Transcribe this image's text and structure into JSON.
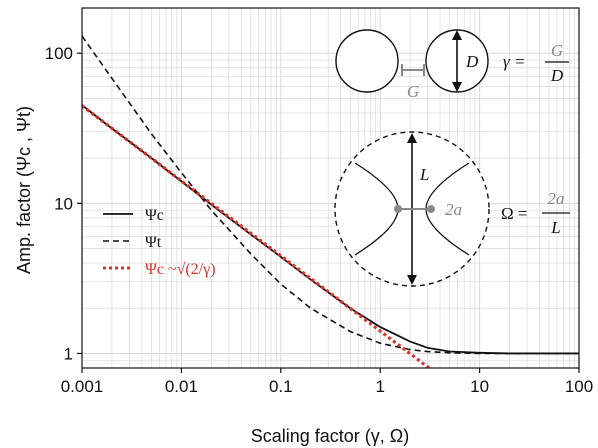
{
  "chart_data": {
    "type": "line",
    "x_scale": "log",
    "y_scale": "log",
    "xlim": [
      0.001,
      100
    ],
    "ylim": [
      0.8,
      200
    ],
    "grid": true,
    "xlabel": "Scaling factor (γ, Ω)",
    "ylabel": "Amp. factor (Ψc , Ψt)",
    "x_ticks": [
      "0.001",
      "0.01",
      "0.1",
      "1",
      "10",
      "100"
    ],
    "y_ticks": [
      "1",
      "10",
      "100"
    ],
    "legend_position": "middle-left",
    "series": [
      {
        "name": "Ψc",
        "style": "solid",
        "color": "#111111",
        "x": [
          0.001,
          0.002,
          0.005,
          0.01,
          0.02,
          0.05,
          0.1,
          0.2,
          0.5,
          1,
          2,
          3,
          5,
          10,
          20,
          50,
          100
        ],
        "y": [
          45,
          31.5,
          20,
          14,
          9.8,
          6.2,
          4.4,
          3.1,
          2.0,
          1.5,
          1.2,
          1.09,
          1.03,
          1.01,
          1.0,
          1.0,
          1.0
        ]
      },
      {
        "name": "Ψt",
        "style": "dashed",
        "color": "#111111",
        "x": [
          0.001,
          0.002,
          0.005,
          0.01,
          0.02,
          0.05,
          0.1,
          0.2,
          0.5,
          1,
          2,
          3,
          5,
          10,
          20,
          50,
          100
        ],
        "y": [
          130,
          68,
          29,
          16,
          9.0,
          4.6,
          2.9,
          2.0,
          1.4,
          1.17,
          1.06,
          1.03,
          1.01,
          1.0,
          1.0,
          1.0,
          1.0
        ]
      },
      {
        "name": "Ψc ~√(2/γ)",
        "style": "dotted",
        "color": "#e0302a",
        "x": [
          0.001,
          0.01,
          0.1,
          1,
          3.1
        ],
        "y": [
          44.7,
          14.1,
          4.47,
          1.41,
          0.8
        ]
      }
    ]
  },
  "annotations": {
    "d_label": "D",
    "g_label": "G",
    "gamma_lhs": "γ =",
    "gamma_num": "G",
    "gamma_den": "D",
    "l_label": "L",
    "two_a_label": "2a",
    "omega_lhs": "Ω =",
    "omega_num": "2a",
    "omega_den": "L"
  },
  "legend": {
    "psi_c": "Ψc",
    "psi_t": "Ψt",
    "psi_c_approx": "Ψc ~√(2/γ)"
  },
  "colors": {
    "axis": "#111111",
    "grid": "#d9d9d9",
    "red": "#e0302a",
    "gray": "#888888"
  }
}
